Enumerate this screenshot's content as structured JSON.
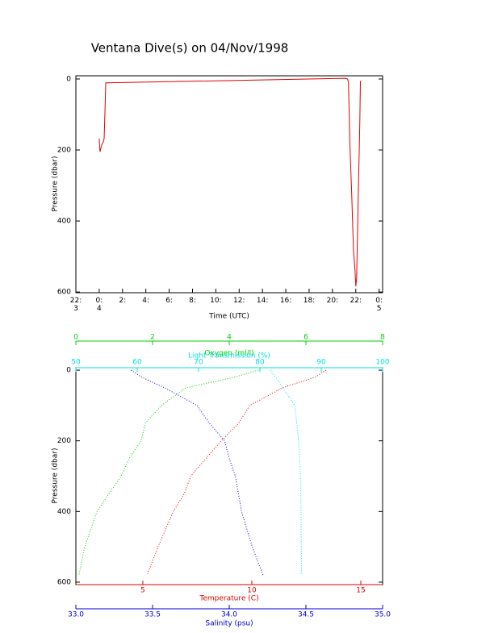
{
  "chart_data": [
    {
      "type": "line",
      "title": "Ventana Dive(s) on 04/Nov/1998",
      "x_label": "Time (UTC)",
      "y_label": "Pressure (dbar)",
      "xlim": [
        0,
        26.3
      ],
      "xticks": [
        {
          "value": 0,
          "label": "22:\n3"
        },
        {
          "value": 2,
          "label": "0:\n4"
        },
        {
          "value": 4,
          "label": "2:"
        },
        {
          "value": 6,
          "label": "4:"
        },
        {
          "value": 8,
          "label": "6:"
        },
        {
          "value": 10,
          "label": "8:"
        },
        {
          "value": 12,
          "label": "10:"
        },
        {
          "value": 14,
          "label": "12:"
        },
        {
          "value": 16,
          "label": "14:"
        },
        {
          "value": 18,
          "label": "16:"
        },
        {
          "value": 20,
          "label": "18:"
        },
        {
          "value": 22,
          "label": "20:"
        },
        {
          "value": 24,
          "label": "22:"
        },
        {
          "value": 26,
          "label": "0:\n5"
        }
      ],
      "ylim": [
        -9,
        602
      ],
      "y_inverted": true,
      "yticks": [
        0,
        200,
        400,
        600
      ],
      "color": "#e00000",
      "x": [
        2.0,
        2.07,
        2.21,
        2.35,
        2.42,
        2.49,
        2.56,
        23.1,
        23.3,
        23.37,
        23.5,
        23.65,
        23.8,
        23.93,
        24.0,
        24.07,
        24.2,
        24.35,
        24.4
      ],
      "values": [
        168,
        205,
        186,
        177,
        168,
        95,
        11,
        -2,
        0,
        11,
        186,
        323,
        482,
        539,
        584,
        561,
        345,
        118,
        5
      ]
    },
    {
      "type": "profile",
      "y_label": "Pressure (dbar)",
      "ylim": [
        -7,
        607
      ],
      "y_inverted": true,
      "yticks": [
        0,
        200,
        400,
        600
      ],
      "series": [
        {
          "axis_label": "Oxygen (ml/l)",
          "color": "#00d000",
          "xlim": [
            0,
            8
          ],
          "xticks": [
            0,
            2,
            4,
            6,
            8
          ],
          "pressure": [
            0,
            20,
            50,
            100,
            150,
            200,
            250,
            300,
            350,
            400,
            500,
            580
          ],
          "values": [
            4.76,
            4.13,
            2.86,
            2.23,
            1.81,
            1.7,
            1.39,
            1.18,
            0.86,
            0.55,
            0.23,
            0.08
          ]
        },
        {
          "axis_label": "Light Transmission (%)",
          "color": "#00e0e0",
          "xlim": [
            50,
            100
          ],
          "xticks": [
            50,
            60,
            70,
            80,
            90,
            100
          ],
          "pressure": [
            0,
            30,
            100,
            150,
            200,
            300,
            400,
            580
          ],
          "values": [
            81.7,
            83,
            85.7,
            86,
            86.3,
            86.6,
            86.7,
            86.8
          ]
        },
        {
          "axis_label": "Temperature (C)",
          "color": "#e00000",
          "xlim": [
            1.93,
            16
          ],
          "xticks": [
            5,
            10,
            15
          ],
          "pressure": [
            0,
            20,
            50,
            100,
            150,
            200,
            250,
            300,
            350,
            400,
            500,
            580
          ],
          "values": [
            13.4,
            12.9,
            11.4,
            9.9,
            9.4,
            8.6,
            7.9,
            7.2,
            6.9,
            6.4,
            5.7,
            5.2
          ]
        },
        {
          "axis_label": "Salinity (psu)",
          "color": "#0000d0",
          "xlim": [
            33,
            35
          ],
          "xticks": [
            {
              "value": 33,
              "label": "33.0"
            },
            {
              "value": 33.5,
              "label": "33.5"
            },
            {
              "value": 34,
              "label": "34.0"
            },
            {
              "value": 34.5,
              "label": "34.5"
            },
            {
              "value": 35,
              "label": "35.0"
            }
          ],
          "pressure": [
            0,
            20,
            50,
            100,
            150,
            200,
            250,
            300,
            400,
            500,
            580
          ],
          "values": [
            33.36,
            33.43,
            33.58,
            33.79,
            33.87,
            33.97,
            34.0,
            34.04,
            34.08,
            34.15,
            34.22
          ]
        }
      ]
    }
  ]
}
